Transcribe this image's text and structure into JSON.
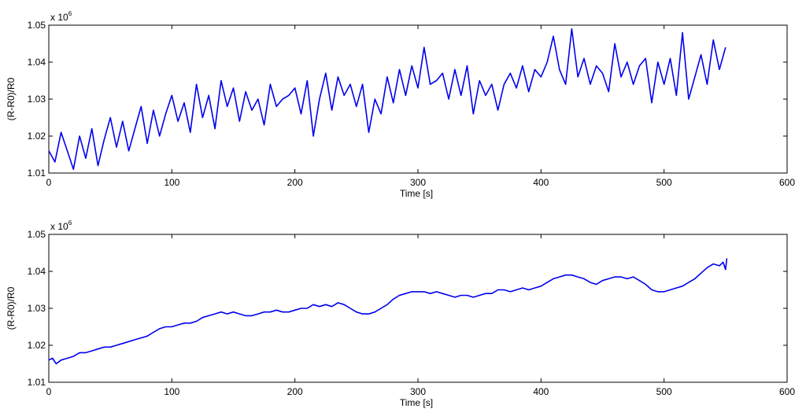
{
  "chart_data": [
    {
      "type": "line",
      "xlabel": "Time [s]",
      "ylabel": "(R-R0)/R0",
      "y_exponent_base": "x 10",
      "y_exponent_power": "6",
      "xlim": [
        0,
        600
      ],
      "ylim": [
        1.01,
        1.05
      ],
      "xticks": [
        0,
        100,
        200,
        300,
        400,
        500,
        600
      ],
      "yticks": [
        1.01,
        1.02,
        1.03,
        1.04,
        1.05
      ],
      "xtick_labels": [
        "0",
        "100",
        "200",
        "300",
        "400",
        "500",
        "600"
      ],
      "ytick_labels": [
        "1.01",
        "1.02",
        "1.03",
        "1.04",
        "1.05"
      ],
      "grid": false,
      "color": "#0000ee",
      "series": [
        {
          "x": [
            0,
            5,
            10,
            15,
            20,
            25,
            30,
            35,
            40,
            45,
            50,
            55,
            60,
            65,
            70,
            75,
            80,
            85,
            90,
            95,
            100,
            105,
            110,
            115,
            120,
            125,
            130,
            135,
            140,
            145,
            150,
            155,
            160,
            165,
            170,
            175,
            180,
            185,
            190,
            195,
            200,
            205,
            210,
            215,
            220,
            225,
            230,
            235,
            240,
            245,
            250,
            255,
            260,
            265,
            270,
            275,
            280,
            285,
            290,
            295,
            300,
            305,
            310,
            315,
            320,
            325,
            330,
            335,
            340,
            345,
            350,
            355,
            360,
            365,
            370,
            375,
            380,
            385,
            390,
            395,
            400,
            405,
            410,
            415,
            420,
            425,
            430,
            435,
            440,
            445,
            450,
            455,
            460,
            465,
            470,
            475,
            480,
            485,
            490,
            495,
            500,
            505,
            510,
            515,
            520,
            525,
            530,
            535,
            540,
            545,
            550
          ],
          "y": [
            1.016,
            1.013,
            1.021,
            1.016,
            1.011,
            1.02,
            1.014,
            1.022,
            1.012,
            1.019,
            1.025,
            1.017,
            1.024,
            1.016,
            1.022,
            1.028,
            1.018,
            1.027,
            1.02,
            1.026,
            1.031,
            1.024,
            1.029,
            1.021,
            1.034,
            1.025,
            1.031,
            1.022,
            1.035,
            1.028,
            1.033,
            1.024,
            1.032,
            1.027,
            1.03,
            1.023,
            1.034,
            1.028,
            1.03,
            1.031,
            1.033,
            1.026,
            1.035,
            1.02,
            1.03,
            1.037,
            1.027,
            1.036,
            1.031,
            1.034,
            1.028,
            1.034,
            1.021,
            1.03,
            1.026,
            1.036,
            1.029,
            1.038,
            1.031,
            1.039,
            1.033,
            1.044,
            1.034,
            1.035,
            1.037,
            1.03,
            1.038,
            1.031,
            1.039,
            1.026,
            1.035,
            1.031,
            1.034,
            1.027,
            1.034,
            1.037,
            1.033,
            1.039,
            1.032,
            1.038,
            1.036,
            1.04,
            1.047,
            1.038,
            1.034,
            1.049,
            1.036,
            1.041,
            1.034,
            1.039,
            1.037,
            1.032,
            1.045,
            1.036,
            1.04,
            1.034,
            1.039,
            1.041,
            1.029,
            1.04,
            1.034,
            1.041,
            1.031,
            1.048,
            1.03,
            1.036,
            1.042,
            1.034,
            1.046,
            1.038,
            1.044
          ]
        }
      ]
    },
    {
      "type": "line",
      "xlabel": "Time [s]",
      "ylabel": "(R-R0)/R0",
      "y_exponent_base": "x 10",
      "y_exponent_power": "6",
      "xlim": [
        0,
        600
      ],
      "ylim": [
        1.01,
        1.05
      ],
      "xticks": [
        0,
        100,
        200,
        300,
        400,
        500,
        600
      ],
      "yticks": [
        1.01,
        1.02,
        1.03,
        1.04,
        1.05
      ],
      "xtick_labels": [
        "0",
        "100",
        "200",
        "300",
        "400",
        "500",
        "600"
      ],
      "ytick_labels": [
        "1.01",
        "1.02",
        "1.03",
        "1.04",
        "1.05"
      ],
      "grid": false,
      "color": "#0000ee",
      "series": [
        {
          "x": [
            0,
            3,
            6,
            10,
            15,
            20,
            25,
            30,
            35,
            40,
            45,
            50,
            55,
            60,
            65,
            70,
            75,
            80,
            85,
            90,
            95,
            100,
            105,
            110,
            115,
            120,
            125,
            130,
            135,
            140,
            145,
            150,
            155,
            160,
            165,
            170,
            175,
            180,
            185,
            190,
            195,
            200,
            205,
            210,
            215,
            220,
            225,
            230,
            235,
            240,
            245,
            250,
            255,
            260,
            265,
            270,
            275,
            280,
            285,
            290,
            295,
            300,
            305,
            310,
            315,
            320,
            325,
            330,
            335,
            340,
            345,
            350,
            355,
            360,
            365,
            370,
            375,
            380,
            385,
            390,
            395,
            400,
            405,
            410,
            415,
            420,
            425,
            430,
            435,
            440,
            445,
            450,
            455,
            460,
            465,
            470,
            475,
            480,
            485,
            490,
            495,
            500,
            505,
            510,
            515,
            520,
            525,
            530,
            535,
            540,
            545,
            548,
            550,
            551
          ],
          "y": [
            1.016,
            1.0165,
            1.015,
            1.016,
            1.0165,
            1.017,
            1.018,
            1.018,
            1.0185,
            1.019,
            1.0195,
            1.0195,
            1.02,
            1.0205,
            1.021,
            1.0215,
            1.022,
            1.0225,
            1.0235,
            1.0245,
            1.025,
            1.025,
            1.0255,
            1.026,
            1.026,
            1.0265,
            1.0275,
            1.028,
            1.0285,
            1.029,
            1.0285,
            1.029,
            1.0285,
            1.028,
            1.028,
            1.0285,
            1.029,
            1.029,
            1.0295,
            1.029,
            1.029,
            1.0295,
            1.03,
            1.03,
            1.031,
            1.0305,
            1.031,
            1.0305,
            1.0315,
            1.031,
            1.03,
            1.029,
            1.0285,
            1.0285,
            1.029,
            1.03,
            1.031,
            1.0325,
            1.0335,
            1.034,
            1.0345,
            1.0345,
            1.0345,
            1.034,
            1.0345,
            1.034,
            1.0335,
            1.033,
            1.0335,
            1.0335,
            1.033,
            1.0335,
            1.034,
            1.034,
            1.035,
            1.035,
            1.0345,
            1.035,
            1.0355,
            1.035,
            1.0355,
            1.036,
            1.037,
            1.038,
            1.0385,
            1.039,
            1.039,
            1.0385,
            1.038,
            1.037,
            1.0365,
            1.0375,
            1.038,
            1.0385,
            1.0385,
            1.038,
            1.0385,
            1.0375,
            1.0365,
            1.035,
            1.0345,
            1.0345,
            1.035,
            1.0355,
            1.036,
            1.037,
            1.038,
            1.0395,
            1.041,
            1.042,
            1.0415,
            1.0425,
            1.0405,
            1.0435
          ]
        }
      ]
    }
  ]
}
